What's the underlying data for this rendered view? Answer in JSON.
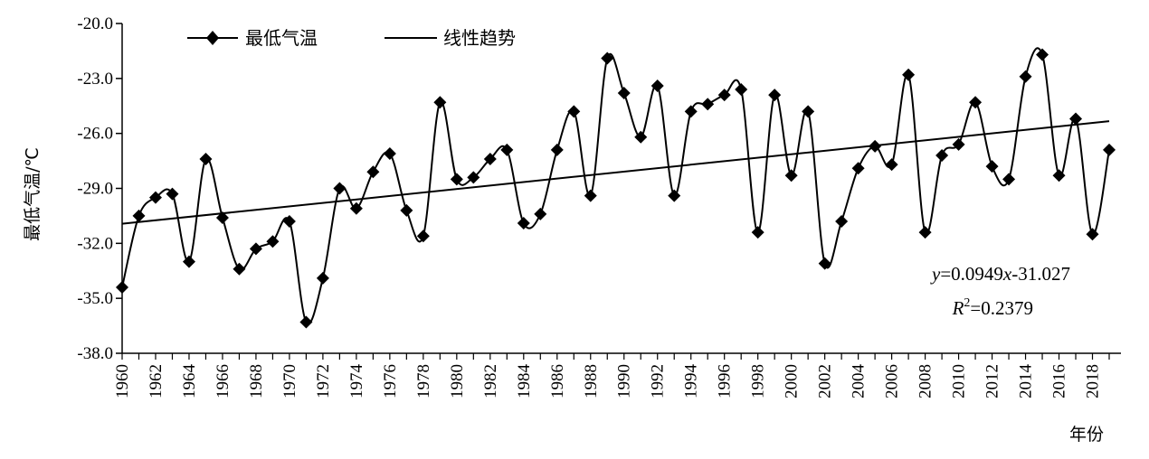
{
  "chart_data": {
    "type": "line",
    "title": "",
    "xlabel": "年份",
    "ylabel": "最低气温/℃",
    "ylim": [
      -38.0,
      -20.0
    ],
    "xlim": [
      1960,
      2019
    ],
    "y_ticks": [
      "-20.0",
      "-23.0",
      "-26.0",
      "-29.0",
      "-32.0",
      "-35.0",
      "-38.0"
    ],
    "x_tick_labels": [
      "1960",
      "1962",
      "1964",
      "1966",
      "1968",
      "1970",
      "1972",
      "1974",
      "1976",
      "1978",
      "1980",
      "1982",
      "1984",
      "1986",
      "1988",
      "1990",
      "1992",
      "1994",
      "1996",
      "1998",
      "2000",
      "2002",
      "2004",
      "2006",
      "2008",
      "2010",
      "2012",
      "2014",
      "2016",
      "2018"
    ],
    "grid": false,
    "legend_position": "top-left",
    "x": [
      1960,
      1961,
      1962,
      1963,
      1964,
      1965,
      1966,
      1967,
      1968,
      1969,
      1970,
      1971,
      1972,
      1973,
      1974,
      1975,
      1976,
      1977,
      1978,
      1979,
      1980,
      1981,
      1982,
      1983,
      1984,
      1985,
      1986,
      1987,
      1988,
      1989,
      1990,
      1991,
      1992,
      1993,
      1994,
      1995,
      1996,
      1997,
      1998,
      1999,
      2000,
      2001,
      2002,
      2003,
      2004,
      2005,
      2006,
      2007,
      2008,
      2009,
      2010,
      2011,
      2012,
      2013,
      2014,
      2015,
      2016,
      2017,
      2018,
      2019
    ],
    "series": [
      {
        "name": "最低气温",
        "marker": "diamond",
        "values": [
          -34.4,
          -30.5,
          -29.5,
          -29.3,
          -33.0,
          -27.4,
          -30.6,
          -33.4,
          -32.3,
          -31.9,
          -30.8,
          -36.3,
          -33.9,
          -29.0,
          -30.1,
          -28.1,
          -27.1,
          -30.2,
          -31.6,
          -24.3,
          -28.5,
          -28.4,
          -27.4,
          -26.9,
          -30.9,
          -30.4,
          -26.9,
          -24.8,
          -29.4,
          -21.9,
          -23.8,
          -26.2,
          -23.4,
          -29.4,
          -24.8,
          -24.4,
          -23.9,
          -23.6,
          -31.4,
          -23.9,
          -28.3,
          -24.8,
          -33.1,
          -30.8,
          -27.9,
          -26.7,
          -27.7,
          -22.8,
          -31.4,
          -27.2,
          -26.6,
          -24.3,
          -27.8,
          -28.5,
          -22.9,
          -21.7,
          -28.3,
          -25.2,
          -31.5,
          -26.9
        ]
      },
      {
        "name": "线性趋势",
        "type": "linear",
        "slope": 0.0949,
        "intercept": -31.027
      }
    ],
    "annotations": {
      "equation_y": "y",
      "equation_rest": "=0.0949",
      "equation_x": "x",
      "equation_end": "-31.027",
      "r2_R": "R",
      "r2_sup": "2",
      "r2_value": "=0.2379"
    }
  },
  "colors": {
    "line": "#000000",
    "background": "#ffffff"
  }
}
